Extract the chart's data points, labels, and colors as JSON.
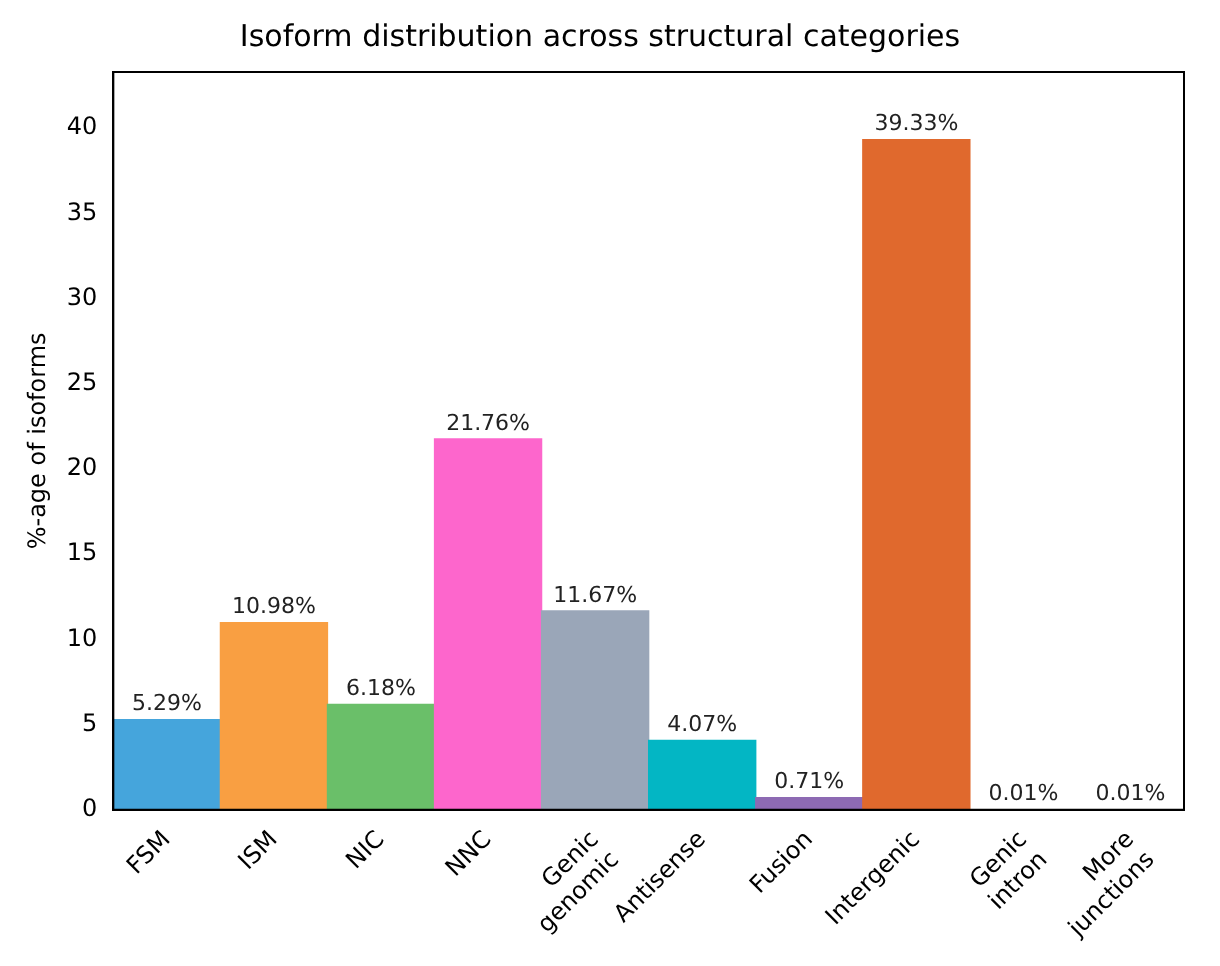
{
  "chart_data": {
    "type": "bar",
    "title": "Isoform distribution across structural categories",
    "ylabel": "%-age of isoforms",
    "categories": [
      "FSM",
      "ISM",
      "NIC",
      "NNC",
      "Genic\ngenomic",
      "Antisense",
      "Fusion",
      "Intergenic",
      "Genic\nintron",
      "More\njunctions"
    ],
    "values": [
      5.29,
      10.98,
      6.18,
      21.76,
      11.67,
      4.07,
      0.71,
      39.33,
      0.01,
      0.01
    ],
    "value_labels": [
      "5.29%",
      "10.98%",
      "6.18%",
      "21.76%",
      "11.67%",
      "4.07%",
      "0.71%",
      "39.33%",
      "0.01%",
      "0.01%"
    ],
    "colors": [
      "#45a5dc",
      "#f99f42",
      "#6abf69",
      "#fd66cc",
      "#9aa6b8",
      "#03b6c4",
      "#8d6ab3",
      "#e0692d",
      "#41b6c4",
      "#a0522d"
    ],
    "ylim": [
      0,
      43.3
    ],
    "yticks": [
      0,
      5,
      10,
      15,
      20,
      25,
      30,
      35,
      40
    ],
    "grid": false,
    "legend": false
  }
}
